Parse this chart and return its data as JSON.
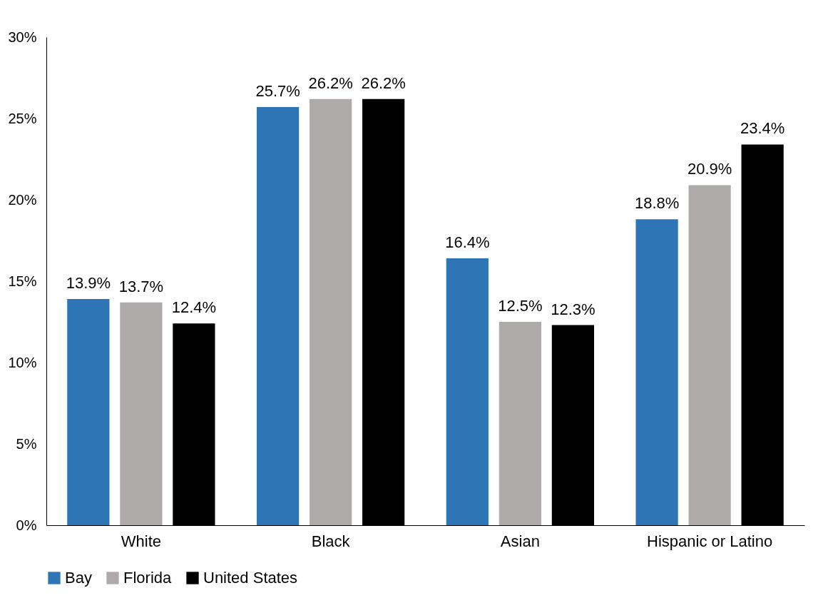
{
  "chart_data": {
    "type": "bar",
    "categories": [
      "White",
      "Black",
      "Asian",
      "Hispanic or Latino"
    ],
    "series": [
      {
        "name": "Bay",
        "color": "#2e75b6",
        "values": [
          13.9,
          25.7,
          16.4,
          18.8
        ],
        "value_labels": [
          "13.9%",
          "25.7%",
          "16.4%",
          "18.8%"
        ]
      },
      {
        "name": "Florida",
        "color": "#aeaaaa",
        "values": [
          13.7,
          26.2,
          12.5,
          20.9
        ],
        "value_labels": [
          "13.7%",
          "26.2%",
          "12.5%",
          "20.9%"
        ]
      },
      {
        "name": "United States",
        "color": "#000000",
        "values": [
          12.4,
          26.2,
          12.3,
          23.4
        ],
        "value_labels": [
          "12.4%",
          "26.2%",
          "12.3%",
          "23.4%"
        ]
      }
    ],
    "ylim": [
      0,
      30
    ],
    "yticks": [
      {
        "value": 0,
        "label": "0%"
      },
      {
        "value": 5,
        "label": "5%"
      },
      {
        "value": 10,
        "label": "10%"
      },
      {
        "value": 15,
        "label": "15%"
      },
      {
        "value": 20,
        "label": "20%"
      },
      {
        "value": 25,
        "label": "25%"
      },
      {
        "value": 30,
        "label": "30%"
      }
    ],
    "grid": false,
    "legend": "bottom"
  }
}
